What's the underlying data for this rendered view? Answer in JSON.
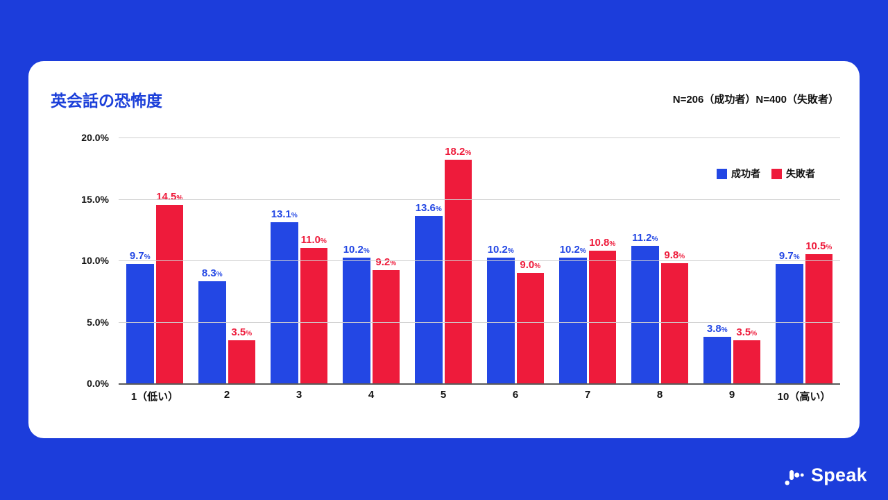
{
  "header": {
    "title": "英会話の恐怖度",
    "sample_note": "N=206（成功者）N=400（失敗者）"
  },
  "colors": {
    "background_blue": "#1C3DDB",
    "bar_blue": "#2347E4",
    "bar_red": "#EE1B3B",
    "title_blue": "#1B3FD9"
  },
  "chart_data": {
    "type": "bar",
    "title": "英会話の恐怖度",
    "categories": [
      "1（低い）",
      "2",
      "3",
      "4",
      "5",
      "6",
      "7",
      "8",
      "9",
      "10（高い）"
    ],
    "series": [
      {
        "name": "成功者",
        "color": "#2347E4",
        "values": [
          9.7,
          8.3,
          13.1,
          10.2,
          13.6,
          10.2,
          10.2,
          11.2,
          3.8,
          9.7
        ]
      },
      {
        "name": "失敗者",
        "color": "#EE1B3B",
        "values": [
          14.5,
          3.5,
          11.0,
          9.2,
          18.2,
          9.0,
          10.8,
          9.8,
          3.5,
          10.5
        ]
      }
    ],
    "ylim": [
      0,
      20
    ],
    "ytick_values": [
      20,
      15,
      10,
      5,
      0
    ],
    "yticks": [
      "20.0%",
      "15.0%",
      "10.0%",
      "5.0%",
      "0.0%"
    ],
    "grid": true,
    "legend_position": "top-right",
    "value_label_suffix": "%"
  },
  "footer": {
    "brand": "Speak"
  }
}
